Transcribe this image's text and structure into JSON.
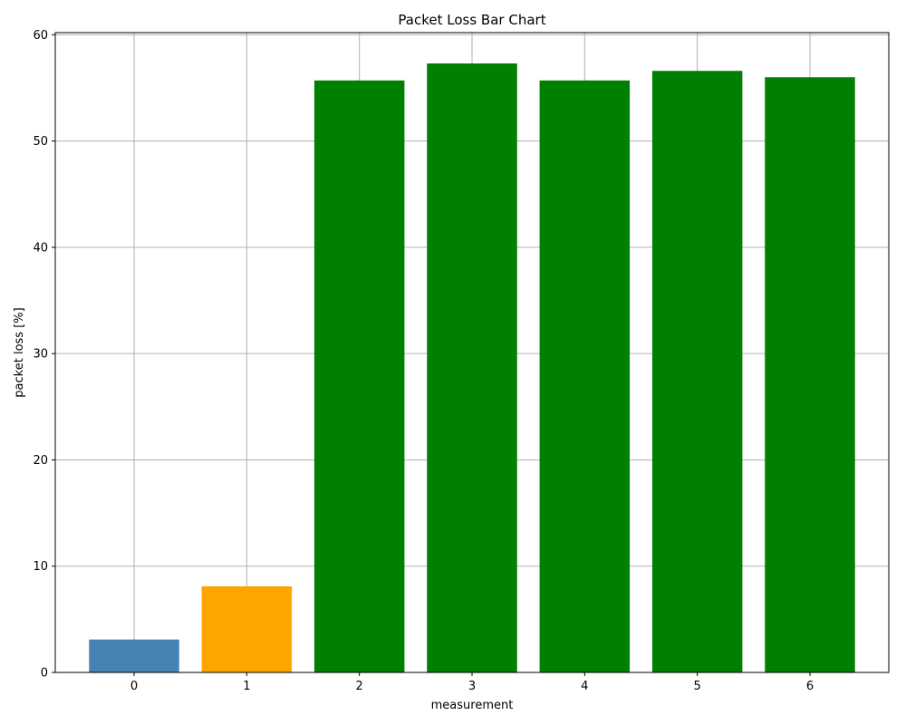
{
  "chart_data": {
    "type": "bar",
    "title": "Packet Loss Bar Chart",
    "xlabel": "measurement",
    "ylabel": "packet loss [%]",
    "categories": [
      "0",
      "1",
      "2",
      "3",
      "4",
      "5",
      "6"
    ],
    "values": [
      3.1,
      8.1,
      55.7,
      57.3,
      55.7,
      56.6,
      56.0
    ],
    "bar_colors": [
      "#4682b4",
      "#ffa500",
      "#008000",
      "#008000",
      "#008000",
      "#008000",
      "#008000"
    ],
    "ylim": [
      0,
      60.2
    ],
    "yticks": [
      0,
      10,
      20,
      30,
      40,
      50,
      60
    ],
    "grid": true
  }
}
